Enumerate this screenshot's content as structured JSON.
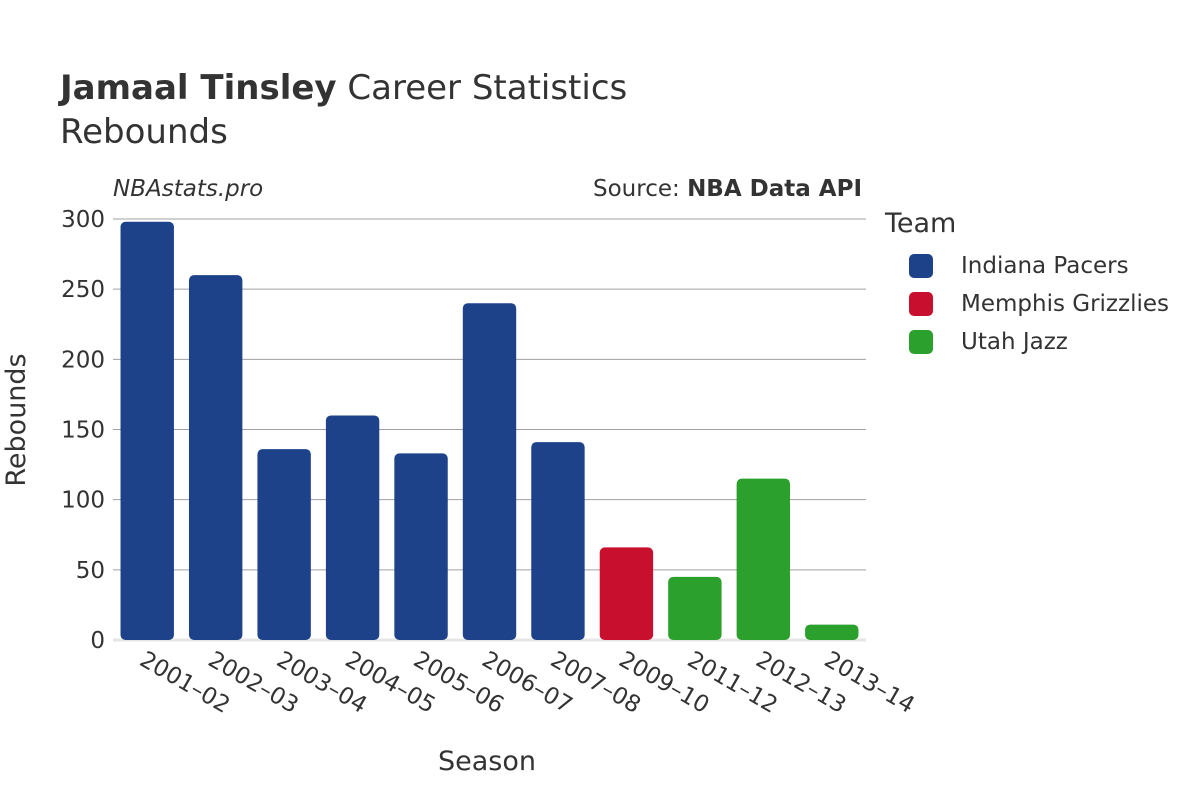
{
  "title": {
    "name": "Jamaal Tinsley",
    "rest": "Career Statistics"
  },
  "subtitle": "Rebounds",
  "watermark": "NBAstats.pro",
  "source": {
    "prefix": "Source: ",
    "name": "NBA Data API"
  },
  "legend": {
    "title": "Team",
    "items": [
      {
        "label": "Indiana Pacers",
        "color": "#1d428a"
      },
      {
        "label": "Memphis Grizzlies",
        "color": "#c8102e"
      },
      {
        "label": "Utah Jazz",
        "color": "#2ca02c"
      }
    ]
  },
  "chart_data": {
    "type": "bar",
    "xlabel": "Season",
    "ylabel": "Rebounds",
    "ylim": [
      0,
      300
    ],
    "yticks": [
      0,
      50,
      100,
      150,
      200,
      250,
      300
    ],
    "grid": true,
    "legend_position": "right",
    "categories": [
      "2001–02",
      "2002–03",
      "2003–04",
      "2004–05",
      "2005–06",
      "2006–07",
      "2007–08",
      "2009–10",
      "2011–12",
      "2012–13",
      "2013–14"
    ],
    "values": [
      298,
      260,
      136,
      160,
      133,
      240,
      141,
      66,
      45,
      115,
      11
    ],
    "teams": [
      "Indiana Pacers",
      "Indiana Pacers",
      "Indiana Pacers",
      "Indiana Pacers",
      "Indiana Pacers",
      "Indiana Pacers",
      "Indiana Pacers",
      "Memphis Grizzlies",
      "Utah Jazz",
      "Utah Jazz",
      "Utah Jazz"
    ]
  }
}
